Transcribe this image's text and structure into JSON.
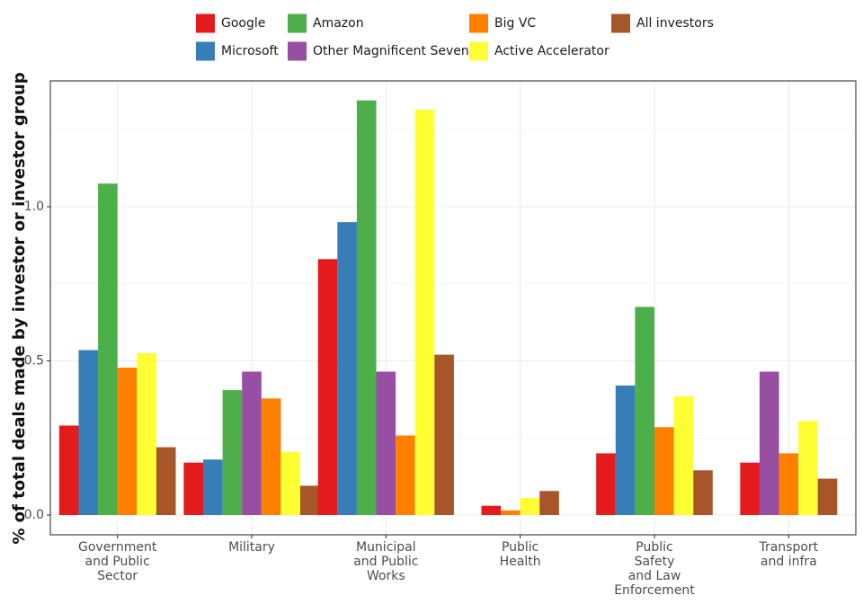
{
  "chart_data": {
    "type": "bar",
    "title": "",
    "xlabel": "",
    "ylabel": "% of total deals made by investor or investor group",
    "ylim": [
      -0.05,
      1.41
    ],
    "yticks": [
      0.0,
      0.5,
      1.0
    ],
    "ytick_labels": [
      "0.0",
      "0.5",
      "1.0"
    ],
    "grid": true,
    "legend_position": "top",
    "categories": [
      "Government\nand Public\nSector",
      "Military",
      "Municipal\nand Public\nWorks",
      "Public\nHealth",
      "Public\nSafety\nand Law\nEnforcement",
      "Transport\nand infra"
    ],
    "series": [
      {
        "name": "Google",
        "color": "#e41a1c",
        "values": [
          0.29,
          0.17,
          0.83,
          0.03,
          0.2,
          0.17
        ]
      },
      {
        "name": "Microsoft",
        "color": "#377eb8",
        "values": [
          0.535,
          0.18,
          0.95,
          null,
          0.42,
          null
        ]
      },
      {
        "name": "Amazon",
        "color": "#4daf4a",
        "values": [
          1.075,
          0.405,
          1.345,
          null,
          0.675,
          null
        ]
      },
      {
        "name": "Other Magnificent Seven",
        "color": "#984ea3",
        "values": [
          null,
          0.465,
          0.465,
          null,
          null,
          0.465
        ]
      },
      {
        "name": "Big VC",
        "color": "#ff7f00",
        "values": [
          0.478,
          0.378,
          0.258,
          0.015,
          0.285,
          0.2
        ]
      },
      {
        "name": "Active Accelerator",
        "color": "#ffff33",
        "values": [
          0.525,
          0.205,
          1.315,
          0.055,
          0.385,
          0.305
        ]
      },
      {
        "name": "All investors",
        "color": "#a65628",
        "values": [
          0.22,
          0.095,
          0.52,
          0.078,
          0.145,
          0.118
        ]
      }
    ],
    "legend_layout": [
      [
        "Google",
        "Amazon",
        "Big VC",
        "All investors"
      ],
      [
        "Microsoft",
        "Other Magnificent Seven",
        "Active Accelerator"
      ]
    ]
  }
}
